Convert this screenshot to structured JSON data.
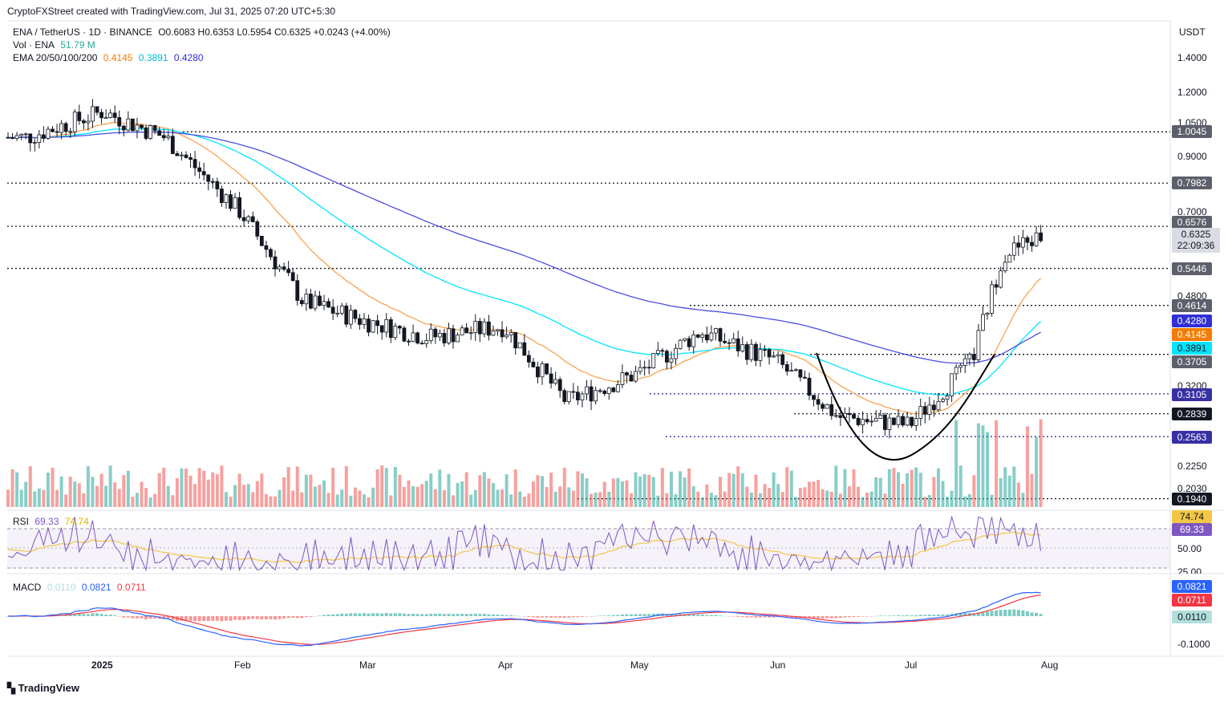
{
  "header": {
    "created_line": "CryptoFXStreet created with TradingView.com, Jul 31, 2025 07:20 UTC+5:30",
    "symbol": "ENA / TetherUS · 1D · BINANCE",
    "ohlc": "O0.6083  H0.6353  L0.5954  C0.6325  +0.0243 (+4.00%)",
    "vol_label": "Vol · ENA",
    "vol_value": "51.79 M",
    "ema_label": "EMA 20/50/100/200",
    "ema20": "0.4145",
    "ema50": "0.3891",
    "ema100": "0.4280",
    "currency": "USDT",
    "brand": "TradingView"
  },
  "colors": {
    "up": "#26a69a",
    "down": "#ef5350",
    "ema20": "#f7a350",
    "ema50": "#00e5ff",
    "ema100": "#4b4ee0",
    "rsi": "#7e57c2",
    "rsi_ma": "#f3c745",
    "macd": "#2962ff",
    "signal": "#f23645"
  },
  "chart_data": [
    {
      "type": "candlestick",
      "title": "ENA / TetherUS · 1D · BINANCE",
      "ylabel": "USDT",
      "y_scale": "log",
      "y_ticks": [
        "1.4000",
        "1.2000",
        "1.0500",
        "0.9000",
        "0.7000",
        "0.4800",
        "0.3200",
        "0.2250",
        "0.2030"
      ],
      "x_ticks": [
        "2025",
        "Feb",
        "Mar",
        "Apr",
        "May",
        "Jun",
        "Jul",
        "Aug"
      ],
      "dates": [
        "2024-12-15",
        "2025-01-01",
        "2025-01-15",
        "2025-02-01",
        "2025-02-15",
        "2025-03-01",
        "2025-03-15",
        "2025-04-01",
        "2025-04-15",
        "2025-05-01",
        "2025-05-15",
        "2025-06-01",
        "2025-06-15",
        "2025-07-01",
        "2025-07-15",
        "2025-07-22",
        "2025-07-31"
      ],
      "closes": [
        0.98,
        1.1,
        0.98,
        0.7,
        0.47,
        0.43,
        0.4,
        0.42,
        0.3,
        0.34,
        0.41,
        0.36,
        0.28,
        0.27,
        0.36,
        0.58,
        0.6325
      ],
      "horizontal_levels": [
        {
          "label": "1.0045",
          "style": "dotted",
          "color": "#131722"
        },
        {
          "label": "0.7982",
          "style": "dotted",
          "color": "#131722"
        },
        {
          "label": "0.6576",
          "style": "dotted",
          "color": "#131722"
        },
        {
          "label": "0.5446",
          "style": "dotted",
          "color": "#131722"
        },
        {
          "label": "0.4614",
          "style": "dotted",
          "color": "#131722"
        },
        {
          "label": "0.3705",
          "style": "dotted",
          "color": "#131722"
        },
        {
          "label": "0.3105",
          "style": "dotted",
          "color": "#3730a3"
        },
        {
          "label": "0.2839",
          "style": "dotted",
          "color": "#131722"
        },
        {
          "label": "0.2563",
          "style": "dotted",
          "color": "#3730a3"
        },
        {
          "label": "0.1940",
          "style": "dotted",
          "color": "#131722"
        }
      ],
      "price_tags": [
        {
          "label": "0.4280",
          "bg": "#2f2fd6",
          "fg": "#ffffff"
        },
        {
          "label": "0.4145",
          "bg": "#f57c00",
          "fg": "#ffffff"
        },
        {
          "label": "0.3891",
          "bg": "#00e5ff",
          "fg": "#131722"
        }
      ],
      "current_price": "0.6325",
      "countdown": "22:09:36",
      "series": [
        {
          "name": "EMA 20",
          "value": "0.4145"
        },
        {
          "name": "EMA 50",
          "value": "0.3891"
        },
        {
          "name": "EMA 100",
          "value": "0.4280"
        }
      ]
    },
    {
      "type": "line",
      "title": "RSI",
      "series": [
        {
          "name": "RSI",
          "last": "69.33"
        },
        {
          "name": "RSI MA",
          "last": "74.74"
        }
      ],
      "y_ticks": [
        "50.00",
        "25.00"
      ],
      "bands": [
        70,
        30
      ]
    },
    {
      "type": "line",
      "title": "MACD",
      "series": [
        {
          "name": "Histogram",
          "last": "0.0110"
        },
        {
          "name": "MACD",
          "last": "0.0821"
        },
        {
          "name": "Signal",
          "last": "0.0711"
        }
      ],
      "y_ticks": [
        "-0.1000"
      ]
    }
  ]
}
